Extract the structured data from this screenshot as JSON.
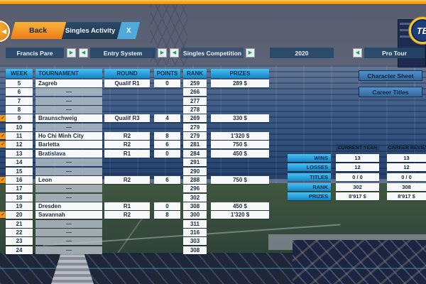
{
  "colors": {
    "accent_orange": "#f0931f",
    "header_cyan": "#2ba9e0",
    "panel_navy": "#2c4f6e",
    "tab_navy": "#24405e",
    "close_blue": "#4fa9da",
    "side_button_blue": "#3f7cba"
  },
  "icons": {
    "speaker": "◀",
    "next": "▶",
    "prev": "◀",
    "check": "✓"
  },
  "top_bar": {
    "back_label": "Back",
    "tab_title": "Singles Activity",
    "close_label": "X",
    "logo_text": "TE"
  },
  "filters": {
    "player": "Francis Pare",
    "entry": "Entry System",
    "competition": "Singles Competition",
    "year": "2020",
    "tour": "Pro Tour"
  },
  "side_buttons": {
    "character_sheet": "Character Sheet",
    "career_titles": "Career Titles"
  },
  "activity_table": {
    "headers": {
      "week": "WEEK",
      "tournament": "TOURNAMENT",
      "round": "ROUND",
      "points": "POINTS",
      "rank": "RANK",
      "prizes": "PRIZES"
    },
    "empty_marker": "—",
    "rows": [
      {
        "week": "5",
        "tournament": "Zagreb",
        "round": "Qualif R1",
        "points": "0",
        "rank": "259",
        "prizes": "289 $",
        "checked": false
      },
      {
        "week": "6",
        "rank": "266"
      },
      {
        "week": "7",
        "rank": "277"
      },
      {
        "week": "8",
        "rank": "278"
      },
      {
        "week": "9",
        "tournament": "Braunschweig",
        "round": "Qualif R3",
        "points": "4",
        "rank": "269",
        "prizes": "330 $",
        "checked": true
      },
      {
        "week": "10",
        "rank": "279"
      },
      {
        "week": "11",
        "tournament": "Ho Chi Minh City",
        "round": "R2",
        "points": "8",
        "rank": "279",
        "prizes": "1'320 $",
        "checked": true
      },
      {
        "week": "12",
        "tournament": "Barletta",
        "round": "R2",
        "points": "6",
        "rank": "281",
        "prizes": "750 $",
        "checked": true
      },
      {
        "week": "13",
        "tournament": "Bratislava",
        "round": "R1",
        "points": "0",
        "rank": "284",
        "prizes": "450 $",
        "checked": false
      },
      {
        "week": "14",
        "rank": "291"
      },
      {
        "week": "15",
        "rank": "290"
      },
      {
        "week": "16",
        "tournament": "Leon",
        "round": "R2",
        "points": "6",
        "rank": "288",
        "prizes": "750 $",
        "checked": true
      },
      {
        "week": "17",
        "rank": "296"
      },
      {
        "week": "18",
        "rank": "302"
      },
      {
        "week": "19",
        "tournament": "Dresden",
        "round": "R1",
        "points": "0",
        "rank": "308",
        "prizes": "450 $",
        "checked": false
      },
      {
        "week": "20",
        "tournament": "Savannah",
        "round": "R2",
        "points": "8",
        "rank": "300",
        "prizes": "1'320 $",
        "checked": true
      },
      {
        "week": "21",
        "rank": "311"
      },
      {
        "week": "22",
        "rank": "316"
      },
      {
        "week": "23",
        "rank": "303"
      },
      {
        "week": "24",
        "rank": "308"
      }
    ]
  },
  "stats_panel": {
    "col_headers": [
      "CURRENT YEAR",
      "CAREER REVIEW"
    ],
    "rows": [
      {
        "label": "WINS",
        "current_year": "13",
        "career_review": "13"
      },
      {
        "label": "LOSSES",
        "current_year": "12",
        "career_review": "12"
      },
      {
        "label": "TITLES",
        "current_year": "0 / 0",
        "career_review": "0 / 0"
      },
      {
        "label": "RANK",
        "current_year": "302",
        "career_review": "308"
      },
      {
        "label": "PRIZES",
        "current_year": "8'917 $",
        "career_review": "8'917 $"
      }
    ]
  }
}
